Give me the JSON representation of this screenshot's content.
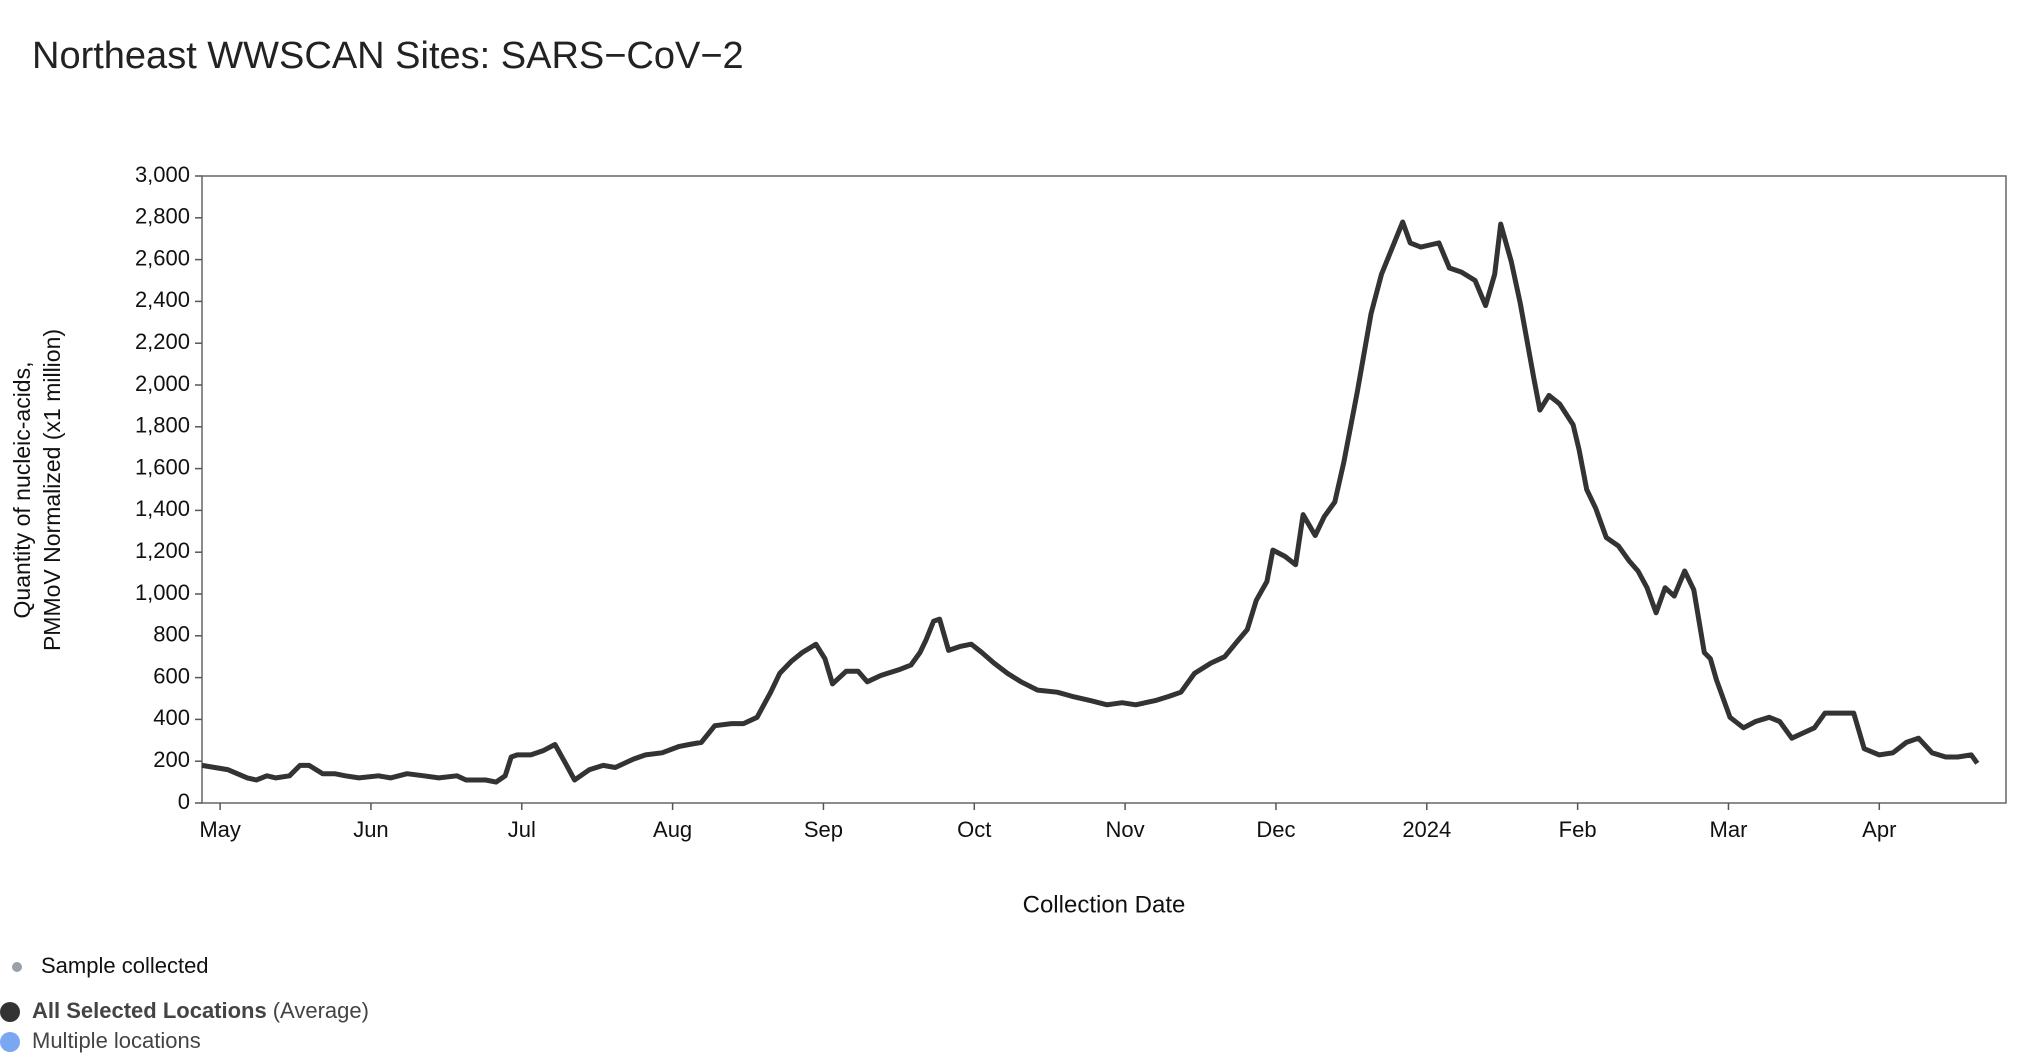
{
  "chart_data": {
    "type": "line",
    "title": "Northeast WWSCAN Sites: SARS−CoV−2",
    "y_label": [
      "Quantity of nucleic-acids,",
      "PMMoV Normalized (x1 million)"
    ],
    "x_label": "Collection Date",
    "xlim": [
      -0.12,
      11.84
    ],
    "xticks": [
      {
        "value": 0,
        "label": "May"
      },
      {
        "value": 1,
        "label": "Jun"
      },
      {
        "value": 2,
        "label": "Jul"
      },
      {
        "value": 3,
        "label": "Aug"
      },
      {
        "value": 4,
        "label": "Sep"
      },
      {
        "value": 5,
        "label": "Oct"
      },
      {
        "value": 6,
        "label": "Nov"
      },
      {
        "value": 7,
        "label": "Dec"
      },
      {
        "value": 8,
        "label": "2024"
      },
      {
        "value": 9,
        "label": "Feb"
      },
      {
        "value": 10,
        "label": "Mar"
      },
      {
        "value": 11,
        "label": "Apr"
      }
    ],
    "ylim": [
      0,
      3000
    ],
    "yticks": [
      0,
      200,
      400,
      600,
      800,
      {
        "value": 1000,
        "label": "1,000"
      },
      {
        "value": 1200,
        "label": "1,200"
      },
      {
        "value": 1400,
        "label": "1,400"
      },
      {
        "value": 1600,
        "label": "1,600"
      },
      {
        "value": 1800,
        "label": "1,800"
      },
      {
        "value": 2000,
        "label": "2,000"
      },
      {
        "value": 2200,
        "label": "2,200"
      },
      {
        "value": 2400,
        "label": "2,400"
      },
      {
        "value": 2600,
        "label": "2,600"
      },
      {
        "value": 2800,
        "label": "2,800"
      },
      {
        "value": 3000,
        "label": "3,000"
      }
    ],
    "x": [
      -0.12,
      0.05,
      0.18,
      0.24,
      0.31,
      0.37,
      0.46,
      0.53,
      0.59,
      0.68,
      0.76,
      0.83,
      0.92,
      1.05,
      1.13,
      1.24,
      1.35,
      1.45,
      1.57,
      1.63,
      1.76,
      1.83,
      1.89,
      1.93,
      1.97,
      2.06,
      2.14,
      2.22,
      2.29,
      2.35,
      2.41,
      2.45,
      2.54,
      2.62,
      2.74,
      2.82,
      2.93,
      3.04,
      3.11,
      3.19,
      3.28,
      3.39,
      3.47,
      3.56,
      3.65,
      3.71,
      3.79,
      3.86,
      3.95,
      4.01,
      4.06,
      4.15,
      4.23,
      4.29,
      4.38,
      4.51,
      4.58,
      4.64,
      4.68,
      4.73,
      4.77,
      4.83,
      4.91,
      4.98,
      5.05,
      5.13,
      5.22,
      5.31,
      5.42,
      5.55,
      5.65,
      5.77,
      5.88,
      5.98,
      6.07,
      6.2,
      6.29,
      6.37,
      6.46,
      6.57,
      6.66,
      6.74,
      6.81,
      6.87,
      6.94,
      6.98,
      7.06,
      7.13,
      7.18,
      7.26,
      7.32,
      7.39,
      7.45,
      7.54,
      7.63,
      7.7,
      7.84,
      7.89,
      7.96,
      8.02,
      8.08,
      8.15,
      8.23,
      8.32,
      8.39,
      8.45,
      8.49,
      8.56,
      8.62,
      8.71,
      8.75,
      8.81,
      8.88,
      8.97,
      9.01,
      9.06,
      9.12,
      9.19,
      9.27,
      9.34,
      9.4,
      9.46,
      9.52,
      9.58,
      9.64,
      9.71,
      9.77,
      9.84,
      9.88,
      9.92,
      10.01,
      10.1,
      10.18,
      10.27,
      10.34,
      10.42,
      10.48,
      10.57,
      10.64,
      10.74,
      10.83,
      10.9,
      11.0,
      11.09,
      11.18,
      11.26,
      11.35,
      11.44,
      11.52,
      11.61,
      11.65
    ],
    "series": [
      {
        "name": "All Selected Locations",
        "color": "#333333",
        "values": [
          180,
          160,
          120,
          110,
          130,
          120,
          130,
          180,
          180,
          140,
          140,
          130,
          120,
          130,
          120,
          140,
          130,
          120,
          130,
          110,
          110,
          100,
          130,
          220,
          230,
          230,
          250,
          280,
          190,
          110,
          140,
          160,
          180,
          170,
          210,
          230,
          240,
          270,
          280,
          290,
          370,
          380,
          380,
          410,
          530,
          620,
          680,
          720,
          760,
          690,
          570,
          630,
          630,
          580,
          610,
          640,
          660,
          720,
          780,
          870,
          880,
          730,
          750,
          760,
          720,
          670,
          620,
          580,
          540,
          530,
          510,
          490,
          470,
          480,
          470,
          490,
          510,
          530,
          620,
          670,
          700,
          770,
          830,
          970,
          1060,
          1210,
          1180,
          1140,
          1380,
          1280,
          1370,
          1440,
          1630,
          1970,
          2340,
          2530,
          2780,
          2680,
          2660,
          2670,
          2680,
          2560,
          2540,
          2500,
          2380,
          2530,
          2770,
          2590,
          2390,
          2030,
          1880,
          1950,
          1910,
          1810,
          1690,
          1500,
          1410,
          1270,
          1230,
          1160,
          1110,
          1030,
          910,
          1030,
          990,
          1110,
          1020,
          720,
          690,
          590,
          410,
          360,
          390,
          410,
          390,
          310,
          330,
          360,
          430,
          430,
          430,
          260,
          230,
          240,
          290,
          310,
          240,
          220,
          220,
          230,
          190
        ]
      }
    ],
    "legend": [
      {
        "label": "Sample collected",
        "color": "#9aa0a8"
      },
      {
        "label": "All Selected Locations",
        "suffix": "(Average)",
        "color": "#333333"
      },
      {
        "label": "Multiple locations",
        "color": "#7aa7f2"
      }
    ]
  }
}
